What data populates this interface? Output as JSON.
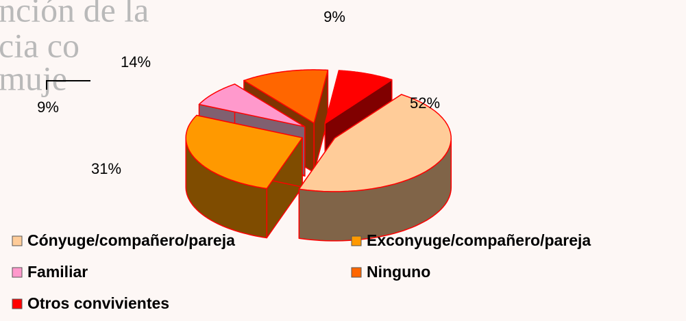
{
  "chart_data": {
    "type": "pie3d",
    "background_text": [
      "nción de la",
      "cia co",
      "muje"
    ],
    "series": [
      {
        "name": "Cónyuge/compañero/pareja",
        "color": "#FFCC99",
        "side_color": "#806448",
        "values": [
          52
        ],
        "value_labels": [
          "52%"
        ]
      },
      {
        "name": "Exconyuge/compañero/pareja",
        "color": "#FF9900",
        "side_color": "#7F4C00",
        "values": [
          31
        ],
        "value_labels": [
          "31%"
        ]
      },
      {
        "name": "Familiar",
        "color": "#FF99CC",
        "side_color": "#806070",
        "values": [
          9
        ],
        "value_labels": [
          "9%"
        ]
      },
      {
        "name": "Ninguno",
        "color": "#FF6600",
        "side_color": "#803300",
        "values": [
          14
        ],
        "value_labels": [
          "14%"
        ]
      },
      {
        "name": "Otros convivientes",
        "color": "#FF0000",
        "side_color": "#800000",
        "values": [
          9
        ],
        "value_labels": [
          "9%"
        ]
      }
    ]
  }
}
